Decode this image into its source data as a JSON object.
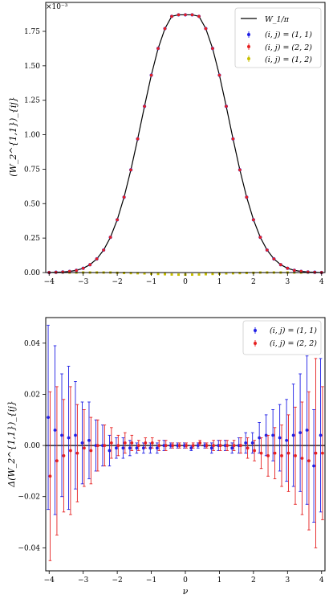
{
  "chart_data": [
    {
      "type": "scatter",
      "title": "",
      "xlabel": "",
      "ylabel": "(W_2^{1,1})_{ij}",
      "y_offset_text": "×10⁻³",
      "xlim": [
        -4.1,
        4.1
      ],
      "ylim": [
        -0.0001,
        1.96
      ],
      "xticks": [
        "−4",
        "−3",
        "−2",
        "−1",
        "0",
        "1",
        "2",
        "3",
        "4"
      ],
      "yticks": [
        "0.00",
        "0.25",
        "0.50",
        "0.75",
        "1.00",
        "1.25",
        "1.50",
        "1.75"
      ],
      "legend": "top-right",
      "legend_entries": [
        "W_1/π",
        "(i, j) = (1, 1)",
        "(i, j) = (2, 2)",
        "(i, j) = (1, 2)"
      ],
      "colors": {
        "curve": "#000000",
        "s11": "#1f1fe6",
        "s22": "#e62020",
        "s12": "#c8c000"
      },
      "x": [
        -4.0,
        -3.8,
        -3.6,
        -3.4,
        -3.2,
        -3.0,
        -2.8,
        -2.6,
        -2.4,
        -2.2,
        -2.0,
        -1.8,
        -1.6,
        -1.4,
        -1.2,
        -1.0,
        -0.8,
        -0.6,
        -0.4,
        -0.2,
        0.0,
        0.2,
        0.4,
        0.6,
        0.8,
        1.0,
        1.2,
        1.4,
        1.6,
        1.8,
        2.0,
        2.2,
        2.4,
        2.6,
        2.8,
        3.0,
        3.2,
        3.4,
        3.6,
        3.8,
        4.0
      ],
      "series": [
        {
          "name": "W_1/π",
          "values": [
            0.0,
            0.002,
            0.004,
            0.008,
            0.016,
            0.031,
            0.057,
            0.099,
            0.163,
            0.256,
            0.383,
            0.547,
            0.745,
            0.97,
            1.206,
            1.432,
            1.626,
            1.77,
            1.859,
            1.87,
            1.87,
            1.87,
            1.859,
            1.77,
            1.626,
            1.432,
            1.206,
            0.97,
            0.745,
            0.547,
            0.383,
            0.256,
            0.163,
            0.099,
            0.057,
            0.031,
            0.016,
            0.008,
            0.004,
            0.002,
            0.0
          ]
        },
        {
          "name": "(i, j) = (1, 1)",
          "values": [
            0.0,
            0.002,
            0.004,
            0.008,
            0.016,
            0.031,
            0.057,
            0.099,
            0.163,
            0.256,
            0.383,
            0.547,
            0.745,
            0.97,
            1.206,
            1.432,
            1.626,
            1.77,
            1.859,
            1.87,
            1.87,
            1.87,
            1.859,
            1.77,
            1.626,
            1.432,
            1.206,
            0.97,
            0.745,
            0.547,
            0.383,
            0.256,
            0.163,
            0.099,
            0.057,
            0.031,
            0.016,
            0.008,
            0.004,
            0.002,
            0.0
          ]
        },
        {
          "name": "(i, j) = (2, 2)",
          "values": [
            0.0,
            0.002,
            0.004,
            0.008,
            0.016,
            0.031,
            0.057,
            0.099,
            0.163,
            0.256,
            0.383,
            0.547,
            0.745,
            0.97,
            1.206,
            1.432,
            1.626,
            1.77,
            1.859,
            1.87,
            1.87,
            1.87,
            1.859,
            1.77,
            1.626,
            1.432,
            1.206,
            0.97,
            0.745,
            0.547,
            0.383,
            0.256,
            0.163,
            0.099,
            0.057,
            0.031,
            0.016,
            0.008,
            0.004,
            0.002,
            0.0
          ]
        },
        {
          "name": "(i, j) = (1, 2)",
          "values": [
            0.0,
            0.0,
            0.0,
            0.0,
            0.0,
            0.0,
            0.0,
            0.0,
            0.0,
            0.0,
            -0.002,
            -0.003,
            -0.004,
            -0.005,
            -0.006,
            -0.008,
            -0.01,
            -0.012,
            -0.014,
            -0.015,
            -0.015,
            -0.015,
            -0.014,
            -0.012,
            -0.01,
            -0.008,
            -0.006,
            -0.005,
            -0.004,
            -0.003,
            -0.002,
            0.0,
            0.0,
            0.0,
            0.0,
            0.0,
            0.0,
            0.0,
            0.0,
            0.0,
            0.0
          ]
        }
      ]
    },
    {
      "type": "scatter",
      "title": "",
      "xlabel": "ν",
      "ylabel": "Δ(W_2^{1,1})_{ij}",
      "xlim": [
        -4.1,
        4.1
      ],
      "ylim": [
        -0.049,
        0.05
      ],
      "xticks": [
        "−4",
        "−3",
        "−2",
        "−1",
        "0",
        "1",
        "2",
        "3",
        "4"
      ],
      "yticks": [
        "−0.04",
        "−0.02",
        "0.00",
        "0.02",
        "0.04"
      ],
      "legend": "top-right",
      "legend_entries": [
        "(i, j) = (1, 1)",
        "(i, j) = (2, 2)"
      ],
      "x": [
        -4.0,
        -3.8,
        -3.6,
        -3.4,
        -3.2,
        -3.0,
        -2.8,
        -2.6,
        -2.4,
        -2.2,
        -2.0,
        -1.8,
        -1.6,
        -1.4,
        -1.2,
        -1.0,
        -0.8,
        -0.6,
        -0.4,
        -0.2,
        0.0,
        0.2,
        0.4,
        0.6,
        0.8,
        1.0,
        1.2,
        1.4,
        1.6,
        1.8,
        2.0,
        2.2,
        2.4,
        2.6,
        2.8,
        3.0,
        3.2,
        3.4,
        3.6,
        3.8,
        4.0
      ],
      "series": [
        {
          "name": "(i, j) = (1, 1)",
          "values": [
            0.011,
            0.006,
            0.004,
            0.003,
            0.004,
            0.001,
            0.002,
            0.0,
            0.0,
            -0.002,
            -0.001,
            -0.001,
            -0.001,
            -0.001,
            -0.001,
            -0.001,
            -0.001,
            0.0,
            0.0,
            0.0,
            0.0,
            -0.001,
            0.0,
            0.0,
            -0.001,
            0.0,
            0.0,
            -0.001,
            0.0,
            0.001,
            0.001,
            0.003,
            0.004,
            0.004,
            0.003,
            0.002,
            0.004,
            0.005,
            0.006,
            -0.008,
            0.004
          ],
          "errors": [
            0.036,
            0.033,
            0.024,
            0.028,
            0.021,
            0.016,
            0.015,
            0.01,
            0.008,
            0.006,
            0.004,
            0.004,
            0.003,
            0.002,
            0.002,
            0.002,
            0.002,
            0.002,
            0.001,
            0.001,
            0.001,
            0.001,
            0.001,
            0.001,
            0.002,
            0.002,
            0.002,
            0.002,
            0.003,
            0.004,
            0.004,
            0.006,
            0.008,
            0.01,
            0.013,
            0.016,
            0.02,
            0.023,
            0.029,
            0.022,
            0.03
          ]
        },
        {
          "name": "(i, j) = (2, 2)",
          "values": [
            -0.012,
            -0.006,
            -0.004,
            -0.002,
            -0.003,
            -0.001,
            -0.002,
            0.0,
            0.0,
            0.001,
            0.0,
            0.001,
            0.001,
            0.0,
            0.001,
            0.001,
            0.0,
            0.0,
            0.0,
            0.0,
            0.0,
            0.0,
            0.001,
            0.0,
            0.0,
            0.0,
            0.0,
            0.0,
            0.0,
            -0.001,
            -0.002,
            -0.003,
            -0.004,
            -0.003,
            -0.004,
            -0.003,
            -0.004,
            -0.005,
            -0.006,
            -0.003,
            -0.003
          ],
          "errors": [
            0.033,
            0.029,
            0.022,
            0.025,
            0.019,
            0.015,
            0.013,
            0.01,
            0.008,
            0.006,
            0.004,
            0.004,
            0.003,
            0.002,
            0.002,
            0.002,
            0.002,
            0.002,
            0.001,
            0.001,
            0.001,
            0.001,
            0.001,
            0.001,
            0.002,
            0.002,
            0.002,
            0.002,
            0.003,
            0.004,
            0.004,
            0.006,
            0.008,
            0.01,
            0.012,
            0.015,
            0.019,
            0.022,
            0.027,
            0.037,
            0.026
          ]
        }
      ]
    }
  ]
}
